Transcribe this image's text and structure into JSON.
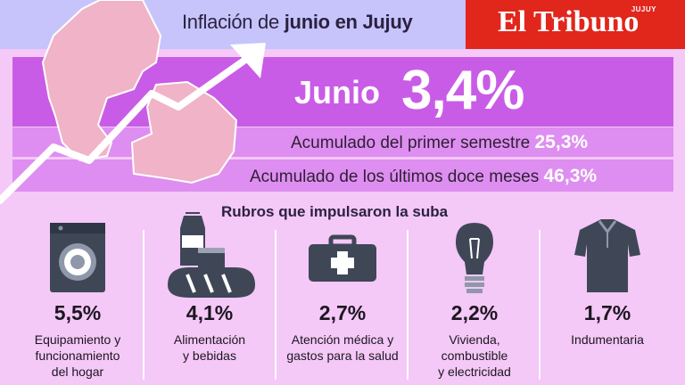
{
  "header": {
    "title_pre": "Inflación de ",
    "title_bold": "junio en Jujuy"
  },
  "brand": {
    "name": "El Tribuno",
    "tag": "JUJUY"
  },
  "main": {
    "month_label": "Junio",
    "month_value": "3,4%",
    "acc_semester_label": "Acumulado del primer semestre ",
    "acc_semester_value": "25,3%",
    "acc_year_label": "Acumulado de los últimos doce meses ",
    "acc_year_value": "46,3%"
  },
  "rubros": {
    "title": "Rubros que impulsaron la suba",
    "items": [
      {
        "value": "5,5%",
        "label_lines": [
          "Equipamiento y",
          "funcionamiento",
          "del hogar"
        ],
        "icon": "washing-machine-icon"
      },
      {
        "value": "4,1%",
        "label_lines": [
          "Alimentación",
          "y bebidas"
        ],
        "icon": "food-icon"
      },
      {
        "value": "2,7%",
        "label_lines": [
          "Atención médica y",
          "gastos para la salud"
        ],
        "icon": "first-aid-kit-icon"
      },
      {
        "value": "2,2%",
        "label_lines": [
          "Vivienda,",
          "combustible",
          "y electricidad"
        ],
        "icon": "light-bulb-icon"
      },
      {
        "value": "1,7%",
        "label_lines": [
          "Indumentaria"
        ],
        "icon": "shirt-icon"
      }
    ]
  },
  "colors": {
    "header_bg": "#c6c4fb",
    "brand_red": "#e1261c",
    "band_main": "#c95ce6",
    "band_sub": "#de8ef0",
    "page_bg": "#f4c8f7",
    "icon_dark": "#3f4757",
    "map_pink": "#f0b3c8"
  }
}
